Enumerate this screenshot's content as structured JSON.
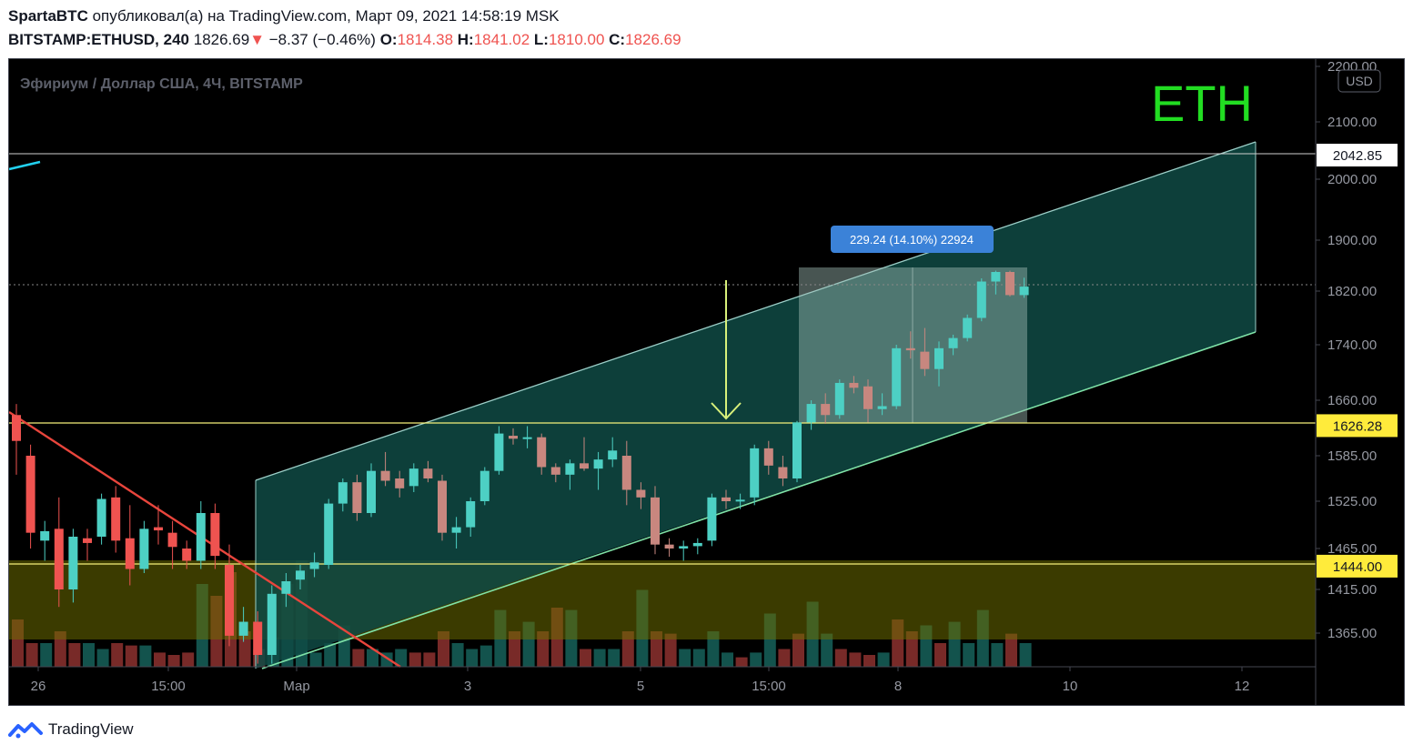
{
  "header": {
    "author": "SpartaBTC",
    "published_text": "опубликовал(а) на TradingView.com, Март 09, 2021 14:58:19 MSK",
    "symbol": "BITSTAMP:ETHUSD, 240",
    "last": "1826.69",
    "change_arrow": "▼",
    "change": "−8.37 (−0.46%)",
    "o_label": "O:",
    "o_value": "1814.38",
    "h_label": "H:",
    "h_value": "1841.02",
    "l_label": "L:",
    "l_value": "1810.00",
    "c_label": "C:",
    "c_value": "1826.69"
  },
  "chart_data": {
    "type": "candlestick",
    "title": "Эфириум / Доллар США, 4Ч, BITSTAMP",
    "annotation": "ETH",
    "currency": "USD",
    "measure_label": "229.24 (14.10%) 22924",
    "y_ticks": [
      "2200.00",
      "2100.00",
      "2000.00",
      "1900.00",
      "1820.00",
      "1740.00",
      "1660.00",
      "1585.00",
      "1525.00",
      "1465.00",
      "1415.00",
      "1365.00"
    ],
    "price_labels": [
      {
        "value": "2042.85",
        "style": "white"
      },
      {
        "value": "1626.28",
        "style": "yellow"
      },
      {
        "value": "1444.00",
        "style": "yellow"
      }
    ],
    "x_ticks": [
      "26",
      "15:00",
      "Мар",
      "3",
      "5",
      "15:00",
      "8",
      "10",
      "12"
    ],
    "colors": {
      "up": "#26a69a",
      "down": "#ef5350",
      "up_candle": "#4dd0c4",
      "down_candle": "#c8877f",
      "channel": "#0f3d38",
      "eth": "#22dd22"
    },
    "candles": [
      {
        "o": 1640,
        "h": 1655,
        "l": 1560,
        "c": 1605
      },
      {
        "o": 1585,
        "h": 1600,
        "l": 1465,
        "c": 1485
      },
      {
        "o": 1475,
        "h": 1500,
        "l": 1450,
        "c": 1487
      },
      {
        "o": 1490,
        "h": 1530,
        "l": 1395,
        "c": 1415
      },
      {
        "o": 1415,
        "h": 1490,
        "l": 1400,
        "c": 1480
      },
      {
        "o": 1478,
        "h": 1490,
        "l": 1450,
        "c": 1472
      },
      {
        "o": 1480,
        "h": 1535,
        "l": 1470,
        "c": 1528
      },
      {
        "o": 1530,
        "h": 1545,
        "l": 1460,
        "c": 1475
      },
      {
        "o": 1478,
        "h": 1520,
        "l": 1420,
        "c": 1440
      },
      {
        "o": 1440,
        "h": 1500,
        "l": 1435,
        "c": 1490
      },
      {
        "o": 1492,
        "h": 1520,
        "l": 1470,
        "c": 1488
      },
      {
        "o": 1485,
        "h": 1500,
        "l": 1440,
        "c": 1467
      },
      {
        "o": 1465,
        "h": 1475,
        "l": 1440,
        "c": 1450
      },
      {
        "o": 1450,
        "h": 1525,
        "l": 1440,
        "c": 1510
      },
      {
        "o": 1510,
        "h": 1522,
        "l": 1440,
        "c": 1456
      },
      {
        "o": 1445,
        "h": 1470,
        "l": 1350,
        "c": 1362
      },
      {
        "o": 1362,
        "h": 1395,
        "l": 1355,
        "c": 1378
      },
      {
        "o": 1378,
        "h": 1390,
        "l": 1330,
        "c": 1340
      },
      {
        "o": 1340,
        "h": 1420,
        "l": 1330,
        "c": 1410
      },
      {
        "o": 1410,
        "h": 1435,
        "l": 1395,
        "c": 1425
      },
      {
        "o": 1427,
        "h": 1445,
        "l": 1415,
        "c": 1438
      },
      {
        "o": 1440,
        "h": 1460,
        "l": 1430,
        "c": 1448
      },
      {
        "o": 1445,
        "h": 1528,
        "l": 1440,
        "c": 1522
      },
      {
        "o": 1522,
        "h": 1555,
        "l": 1512,
        "c": 1550
      },
      {
        "o": 1550,
        "h": 1560,
        "l": 1500,
        "c": 1510
      },
      {
        "o": 1510,
        "h": 1575,
        "l": 1505,
        "c": 1565
      },
      {
        "o": 1565,
        "h": 1590,
        "l": 1545,
        "c": 1552
      },
      {
        "o": 1555,
        "h": 1565,
        "l": 1530,
        "c": 1542
      },
      {
        "o": 1545,
        "h": 1575,
        "l": 1537,
        "c": 1568
      },
      {
        "o": 1568,
        "h": 1578,
        "l": 1550,
        "c": 1555
      },
      {
        "o": 1552,
        "h": 1560,
        "l": 1475,
        "c": 1485
      },
      {
        "o": 1485,
        "h": 1505,
        "l": 1465,
        "c": 1492
      },
      {
        "o": 1492,
        "h": 1530,
        "l": 1480,
        "c": 1525
      },
      {
        "o": 1525,
        "h": 1570,
        "l": 1520,
        "c": 1565
      },
      {
        "o": 1565,
        "h": 1625,
        "l": 1560,
        "c": 1615
      },
      {
        "o": 1612,
        "h": 1622,
        "l": 1600,
        "c": 1608
      },
      {
        "o": 1608,
        "h": 1625,
        "l": 1595,
        "c": 1610
      },
      {
        "o": 1610,
        "h": 1615,
        "l": 1560,
        "c": 1570
      },
      {
        "o": 1570,
        "h": 1575,
        "l": 1550,
        "c": 1560
      },
      {
        "o": 1560,
        "h": 1580,
        "l": 1540,
        "c": 1575
      },
      {
        "o": 1575,
        "h": 1610,
        "l": 1565,
        "c": 1568
      },
      {
        "o": 1568,
        "h": 1590,
        "l": 1540,
        "c": 1580
      },
      {
        "o": 1580,
        "h": 1610,
        "l": 1570,
        "c": 1592
      },
      {
        "o": 1585,
        "h": 1605,
        "l": 1520,
        "c": 1540
      },
      {
        "o": 1540,
        "h": 1550,
        "l": 1515,
        "c": 1530
      },
      {
        "o": 1530,
        "h": 1545,
        "l": 1458,
        "c": 1470
      },
      {
        "o": 1470,
        "h": 1478,
        "l": 1455,
        "c": 1465
      },
      {
        "o": 1465,
        "h": 1475,
        "l": 1450,
        "c": 1468
      },
      {
        "o": 1468,
        "h": 1478,
        "l": 1458,
        "c": 1472
      },
      {
        "o": 1475,
        "h": 1535,
        "l": 1468,
        "c": 1530
      },
      {
        "o": 1530,
        "h": 1540,
        "l": 1515,
        "c": 1525
      },
      {
        "o": 1525,
        "h": 1535,
        "l": 1515,
        "c": 1527
      },
      {
        "o": 1530,
        "h": 1600,
        "l": 1520,
        "c": 1595
      },
      {
        "o": 1595,
        "h": 1605,
        "l": 1560,
        "c": 1572
      },
      {
        "o": 1570,
        "h": 1585,
        "l": 1545,
        "c": 1555
      },
      {
        "o": 1555,
        "h": 1632,
        "l": 1550,
        "c": 1630
      },
      {
        "o": 1630,
        "h": 1660,
        "l": 1620,
        "c": 1655
      },
      {
        "o": 1655,
        "h": 1670,
        "l": 1628,
        "c": 1640
      },
      {
        "o": 1640,
        "h": 1690,
        "l": 1635,
        "c": 1685
      },
      {
        "o": 1685,
        "h": 1695,
        "l": 1670,
        "c": 1678
      },
      {
        "o": 1680,
        "h": 1690,
        "l": 1630,
        "c": 1648
      },
      {
        "o": 1648,
        "h": 1670,
        "l": 1640,
        "c": 1652
      },
      {
        "o": 1652,
        "h": 1740,
        "l": 1648,
        "c": 1735
      },
      {
        "o": 1735,
        "h": 1760,
        "l": 1720,
        "c": 1732
      },
      {
        "o": 1730,
        "h": 1765,
        "l": 1695,
        "c": 1705
      },
      {
        "o": 1705,
        "h": 1745,
        "l": 1680,
        "c": 1735
      },
      {
        "o": 1735,
        "h": 1755,
        "l": 1725,
        "c": 1750
      },
      {
        "o": 1750,
        "h": 1785,
        "l": 1745,
        "c": 1780
      },
      {
        "o": 1780,
        "h": 1840,
        "l": 1775,
        "c": 1835
      },
      {
        "o": 1835,
        "h": 1852,
        "l": 1815,
        "c": 1850
      },
      {
        "o": 1850,
        "h": 1852,
        "l": 1812,
        "c": 1814
      },
      {
        "o": 1814,
        "h": 1841,
        "l": 1810,
        "c": 1827
      }
    ],
    "volume": [
      {
        "v": 4,
        "up": false
      },
      {
        "v": 2,
        "up": false
      },
      {
        "v": 2,
        "up": true
      },
      {
        "v": 3,
        "up": false
      },
      {
        "v": 2,
        "up": false
      },
      {
        "v": 2,
        "up": true
      },
      {
        "v": 1.5,
        "up": true
      },
      {
        "v": 2,
        "up": false
      },
      {
        "v": 1.8,
        "up": false
      },
      {
        "v": 1.8,
        "up": true
      },
      {
        "v": 1.2,
        "up": false
      },
      {
        "v": 1,
        "up": false
      },
      {
        "v": 1.2,
        "up": false
      },
      {
        "v": 7,
        "up": true
      },
      {
        "v": 6,
        "up": false
      },
      {
        "v": 8,
        "up": false
      },
      {
        "v": 3,
        "up": false
      },
      {
        "v": 1.5,
        "up": false
      },
      {
        "v": 2.5,
        "up": true
      },
      {
        "v": 7,
        "up": true
      },
      {
        "v": 9,
        "up": true
      },
      {
        "v": 1.2,
        "up": true
      },
      {
        "v": 2,
        "up": true
      },
      {
        "v": 3.5,
        "up": true
      },
      {
        "v": 1.5,
        "up": false
      },
      {
        "v": 1.5,
        "up": true
      },
      {
        "v": 1.2,
        "up": true
      },
      {
        "v": 1.5,
        "up": true
      },
      {
        "v": 1.2,
        "up": false
      },
      {
        "v": 1.2,
        "up": false
      },
      {
        "v": 3,
        "up": false
      },
      {
        "v": 2,
        "up": true
      },
      {
        "v": 1.5,
        "up": true
      },
      {
        "v": 1.8,
        "up": true
      },
      {
        "v": 4.8,
        "up": true
      },
      {
        "v": 3,
        "up": false
      },
      {
        "v": 3.8,
        "up": true
      },
      {
        "v": 3,
        "up": false
      },
      {
        "v": 5,
        "up": false
      },
      {
        "v": 4.8,
        "up": true
      },
      {
        "v": 1.5,
        "up": false
      },
      {
        "v": 1.5,
        "up": true
      },
      {
        "v": 1.5,
        "up": true
      },
      {
        "v": 3,
        "up": false
      },
      {
        "v": 6.5,
        "up": true
      },
      {
        "v": 3,
        "up": false
      },
      {
        "v": 2.8,
        "up": false
      },
      {
        "v": 1.5,
        "up": true
      },
      {
        "v": 1.5,
        "up": true
      },
      {
        "v": 3,
        "up": true
      },
      {
        "v": 1.2,
        "up": true
      },
      {
        "v": 0.8,
        "up": false
      },
      {
        "v": 1.2,
        "up": true
      },
      {
        "v": 4.5,
        "up": true
      },
      {
        "v": 1.5,
        "up": false
      },
      {
        "v": 2.8,
        "up": false
      },
      {
        "v": 5.5,
        "up": true
      },
      {
        "v": 2.8,
        "up": true
      },
      {
        "v": 1.5,
        "up": false
      },
      {
        "v": 1.2,
        "up": false
      },
      {
        "v": 1,
        "up": false
      },
      {
        "v": 1.2,
        "up": true
      },
      {
        "v": 4,
        "up": false
      },
      {
        "v": 3,
        "up": false
      },
      {
        "v": 3.5,
        "up": true
      },
      {
        "v": 2,
        "up": false
      },
      {
        "v": 3.8,
        "up": true
      },
      {
        "v": 2,
        "up": true
      },
      {
        "v": 4.8,
        "up": true
      },
      {
        "v": 2,
        "up": true
      },
      {
        "v": 2.8,
        "up": false
      },
      {
        "v": 2,
        "up": true
      }
    ],
    "lines": {
      "resistance_top": 2042.85,
      "level_mid": 1626.28,
      "level_low": 1444.0
    }
  },
  "footer": {
    "brand": "TradingView"
  }
}
